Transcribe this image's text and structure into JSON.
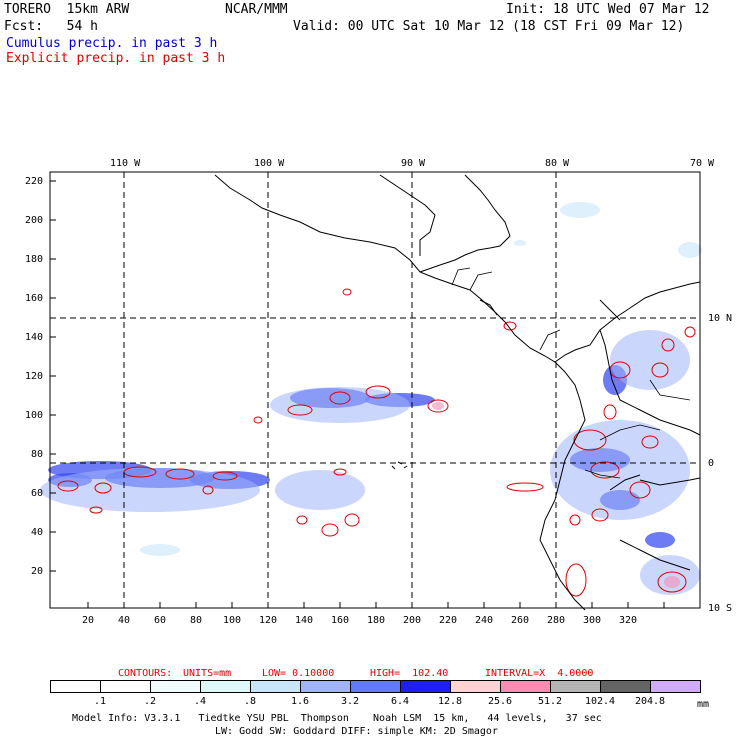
{
  "header": {
    "model": "TORERO  15km ARW",
    "org": "NCAR/MMM",
    "init": "Init: 18 UTC Wed 07 Mar 12",
    "fcst": "Fcst:   54 h",
    "valid": "Valid: 00 UTC Sat 10 Mar 12 (18 CST Fri 09 Mar 12)",
    "field1": "Cumulus precip. in past 3 h",
    "field2": "Explicit precip. in past 3 h",
    "field1_color": "#0000c8",
    "field2_color": "#e00000"
  },
  "axes": {
    "top_lon": [
      "110 W",
      "100 W",
      "90 W",
      "80 W",
      "70 W"
    ],
    "right_lat": [
      "10 N",
      "0",
      "10 S"
    ],
    "x_ticks": [
      "20",
      "40",
      "60",
      "80",
      "100",
      "120",
      "140",
      "160",
      "180",
      "200",
      "220",
      "240",
      "260",
      "280",
      "300",
      "320"
    ],
    "y_ticks": [
      "220",
      "200",
      "180",
      "160",
      "140",
      "120",
      "100",
      "80",
      "60",
      "40",
      "20"
    ]
  },
  "contour_info": {
    "title": "CONTOURS:",
    "units": "UNITS=mm",
    "low": "LOW= 0.10000",
    "high": "HIGH=  102.40",
    "interval": "INTERVAL=X  4.0000"
  },
  "legend": {
    "labels": [
      ".1",
      ".2",
      ".4",
      ".8",
      "1.6",
      "3.2",
      "6.4",
      "12.8",
      "25.6",
      "51.2",
      "102.4",
      "204.8"
    ],
    "unit": "mm",
    "colors": [
      "#ffffff",
      "#ffffff",
      "#f0fcfc",
      "#dcf8f8",
      "#c8e6fa",
      "#a0b4fa",
      "#6478fa",
      "#1e1efa",
      "#1414c8",
      "#fcd2d2",
      "#fa8cb4",
      "#b4b4b4",
      "#646464",
      "#d2aafa"
    ]
  },
  "footer": {
    "line1": "Model Info: V3.3.1   Tiedtke YSU PBL  Thompson    Noah LSM  15 km,   44 levels,   37 sec",
    "line2": "LW: Godd SW: Goddard DIFF: simple KM: 2D Smagor"
  }
}
